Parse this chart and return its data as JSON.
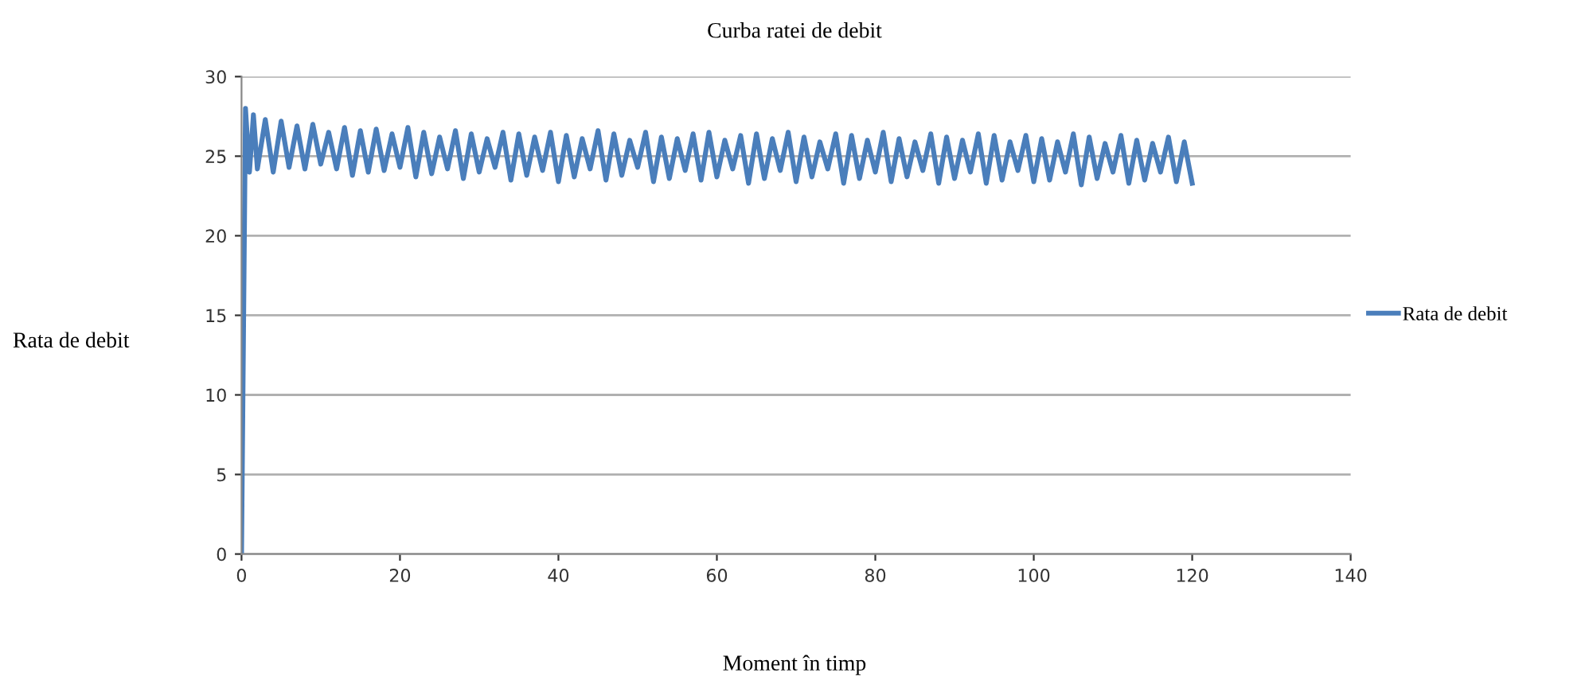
{
  "chart_data": {
    "type": "line",
    "title": "Curba ratei de debit",
    "xlabel": "Moment în timp",
    "ylabel": "Rata de debit",
    "x": [
      0,
      0.5,
      1,
      1.5,
      2,
      3,
      4,
      5,
      6,
      7,
      8,
      9,
      10,
      11,
      12,
      13,
      14,
      15,
      16,
      17,
      18,
      19,
      20,
      21,
      22,
      23,
      24,
      25,
      26,
      27,
      28,
      29,
      30,
      31,
      32,
      33,
      34,
      35,
      36,
      37,
      38,
      39,
      40,
      41,
      42,
      43,
      44,
      45,
      46,
      47,
      48,
      49,
      50,
      51,
      52,
      53,
      54,
      55,
      56,
      57,
      58,
      59,
      60,
      61,
      62,
      63,
      64,
      65,
      66,
      67,
      68,
      69,
      70,
      71,
      72,
      73,
      74,
      75,
      76,
      77,
      78,
      79,
      80,
      81,
      82,
      83,
      84,
      85,
      86,
      87,
      88,
      89,
      90,
      91,
      92,
      93,
      94,
      95,
      96,
      97,
      98,
      99,
      100,
      101,
      102,
      103,
      104,
      105,
      106,
      107,
      108,
      109,
      110,
      111,
      112,
      113,
      114,
      115,
      116,
      117,
      118,
      119,
      120
    ],
    "series": [
      {
        "name": "Rata de debit",
        "color": "#4a7ebb",
        "values": [
          0,
          28,
          24,
          27.6,
          24.2,
          27.3,
          24,
          27.2,
          24.3,
          26.9,
          24.2,
          27,
          24.5,
          26.5,
          24.2,
          26.8,
          23.8,
          26.6,
          24,
          26.7,
          24.1,
          26.4,
          24.3,
          26.8,
          23.7,
          26.5,
          23.9,
          26.2,
          24.2,
          26.6,
          23.6,
          26.4,
          24,
          26.1,
          24.3,
          26.5,
          23.5,
          26.4,
          23.8,
          26.2,
          24.1,
          26.5,
          23.4,
          26.3,
          23.7,
          26.1,
          24.2,
          26.6,
          23.5,
          26.4,
          23.8,
          26,
          24.3,
          26.5,
          23.4,
          26.2,
          23.6,
          26.1,
          24.1,
          26.4,
          23.5,
          26.5,
          23.7,
          26,
          24.2,
          26.3,
          23.3,
          26.4,
          23.6,
          26.1,
          24.1,
          26.5,
          23.4,
          26.2,
          23.7,
          25.9,
          24.2,
          26.4,
          23.3,
          26.3,
          23.6,
          26,
          24,
          26.5,
          23.4,
          26.1,
          23.7,
          25.9,
          24.1,
          26.4,
          23.3,
          26.2,
          23.6,
          26,
          24,
          26.4,
          23.3,
          26.3,
          23.5,
          25.9,
          24.1,
          26.3,
          23.4,
          26.1,
          23.5,
          25.9,
          24,
          26.4,
          23.2,
          26.2,
          23.6,
          25.8,
          24,
          26.3,
          23.3,
          26,
          23.5,
          25.8,
          24,
          26.2,
          23.4,
          25.9,
          23.3
        ]
      }
    ],
    "xlim": [
      0,
      140
    ],
    "xticks": [
      0,
      20,
      40,
      60,
      80,
      100,
      120,
      140
    ],
    "ylim": [
      0,
      30
    ],
    "yticks": [
      0,
      5,
      10,
      15,
      20,
      25,
      30
    ],
    "grid": "y",
    "legend": "right",
    "marker": "none",
    "line_style": "solid"
  }
}
